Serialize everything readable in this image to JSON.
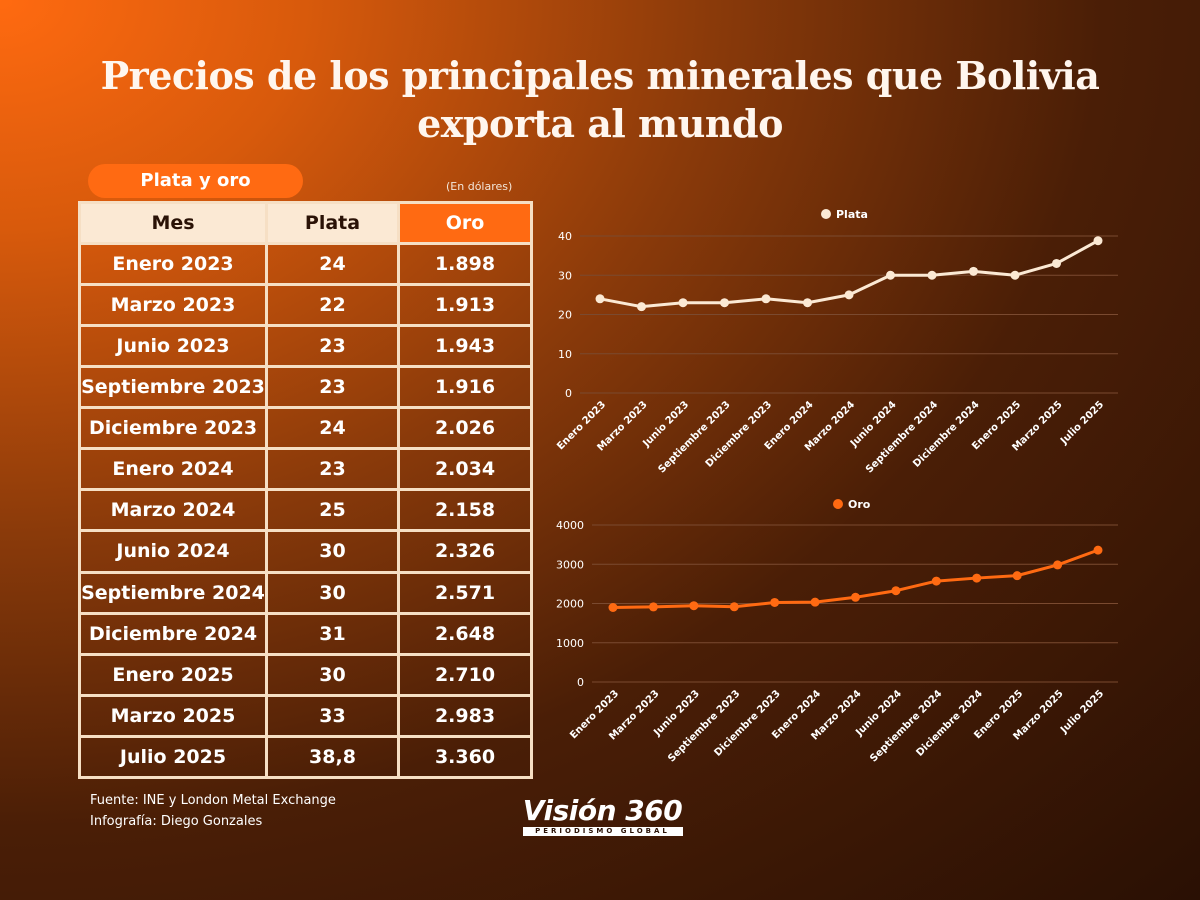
{
  "title_line1": "Precios de los principales minerales que Bolivia",
  "title_line2": "exporta al mundo",
  "pill_label": "Plata y  oro",
  "units_note": "(En dólares)",
  "table": {
    "headers": [
      "Mes",
      "Plata",
      "Oro"
    ],
    "rows": [
      [
        "Enero 2023",
        "24",
        "1.898"
      ],
      [
        "Marzo 2023",
        "22",
        "1.913"
      ],
      [
        "Junio 2023",
        "23",
        "1.943"
      ],
      [
        "Septiembre 2023",
        "23",
        "1.916"
      ],
      [
        "Diciembre 2023",
        "24",
        "2.026"
      ],
      [
        "Enero 2024",
        "23",
        "2.034"
      ],
      [
        "Marzo 2024",
        "25",
        "2.158"
      ],
      [
        "Junio 2024",
        "30",
        "2.326"
      ],
      [
        "Septiembre 2024",
        "30",
        "2.571"
      ],
      [
        "Diciembre 2024",
        "31",
        "2.648"
      ],
      [
        "Enero 2025",
        "30",
        "2.710"
      ],
      [
        "Marzo 2025",
        "33",
        "2.983"
      ],
      [
        "Julio 2025",
        "38,8",
        "3.360"
      ]
    ]
  },
  "source_line1": "Fuente: INE y London Metal Exchange",
  "source_line2": "Infografía: Diego Gonzales",
  "logo": {
    "main": "Visión 360",
    "sub": "PERIODISMO GLOBAL"
  },
  "colors": {
    "plata": "#fbe9d4",
    "oro": "#ff6a12",
    "grid": "#7a4a30"
  },
  "chart_data": [
    {
      "type": "line",
      "categories": [
        "Enero 2023",
        "Marzo 2023",
        "Junio 2023",
        "Septiembre 2023",
        "Diciembre 2023",
        "Enero 2024",
        "Marzo 2024",
        "Junio 2024",
        "Septiembre 2024",
        "Diciembre 2024",
        "Enero 2025",
        "Marzo 2025",
        "Julio 2025"
      ],
      "series": [
        {
          "name": "Plata",
          "values": [
            24,
            22,
            23,
            23,
            24,
            23,
            25,
            30,
            30,
            31,
            30,
            33,
            38.8
          ]
        }
      ],
      "yticks": [
        0,
        10,
        20,
        30,
        40
      ],
      "ylim": [
        0,
        40
      ],
      "grid": true,
      "legend": "top-center"
    },
    {
      "type": "line",
      "categories": [
        "Enero 2023",
        "Marzo 2023",
        "Junio 2023",
        "Septiembre 2023",
        "Diciembre 2023",
        "Enero 2024",
        "Marzo 2024",
        "Junio 2024",
        "Septiembre 2024",
        "Diciembre 2024",
        "Enero 2025",
        "Marzo 2025",
        "Julio 2025"
      ],
      "series": [
        {
          "name": "Oro",
          "values": [
            1898,
            1913,
            1943,
            1916,
            2026,
            2034,
            2158,
            2326,
            2571,
            2648,
            2710,
            2983,
            3360
          ]
        }
      ],
      "yticks": [
        0,
        1000,
        2000,
        3000,
        4000
      ],
      "ylim": [
        0,
        4000
      ],
      "grid": true,
      "legend": "top-center"
    }
  ]
}
